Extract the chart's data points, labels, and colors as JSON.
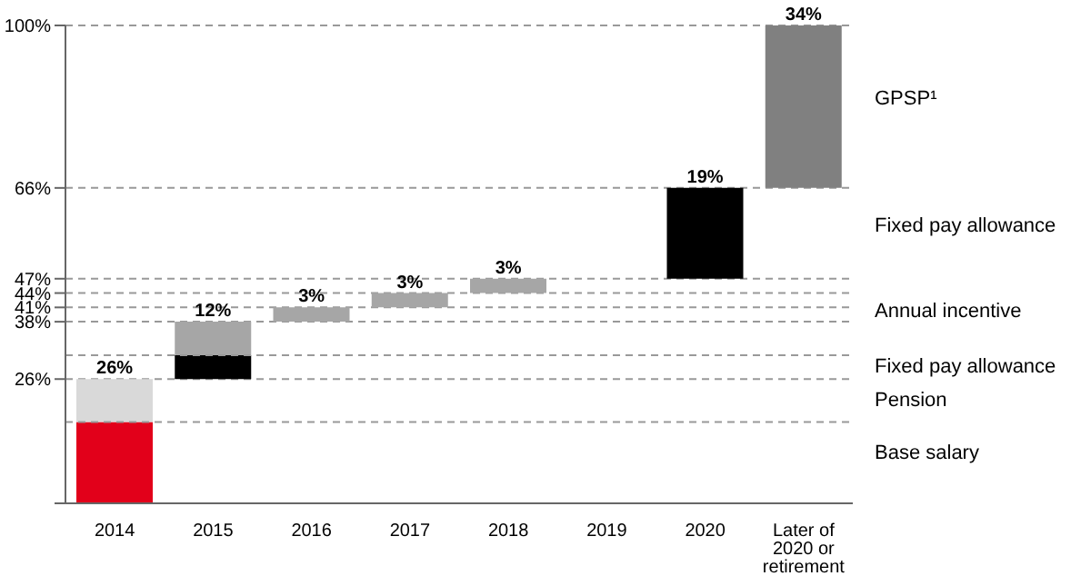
{
  "chart_data": {
    "type": "bar",
    "categories": [
      "2014",
      "2015",
      "2016",
      "2017",
      "2018",
      "2019",
      "2020",
      "Later of 2020 or retirement"
    ],
    "series": [
      {
        "color": "#e2001a",
        "base": [
          0,
          null,
          null,
          null,
          null,
          null,
          null,
          null
        ],
        "values": [
          17,
          null,
          null,
          null,
          null,
          null,
          null,
          null
        ]
      },
      {
        "color": "#d9d9d9",
        "base": [
          17,
          null,
          null,
          null,
          null,
          null,
          null,
          null
        ],
        "values": [
          9,
          null,
          null,
          null,
          null,
          null,
          null,
          null
        ]
      },
      {
        "color": "#000000",
        "base": [
          null,
          26,
          null,
          null,
          null,
          null,
          47,
          null
        ],
        "values": [
          null,
          5,
          null,
          null,
          null,
          null,
          19,
          null
        ]
      },
      {
        "color": "#a6a6a6",
        "base": [
          null,
          31,
          38,
          41,
          44,
          null,
          null,
          null
        ],
        "values": [
          null,
          7,
          3,
          3,
          3,
          null,
          null,
          null
        ]
      },
      {
        "color": "#808080",
        "base": [
          null,
          null,
          null,
          null,
          null,
          null,
          null,
          66
        ],
        "values": [
          null,
          null,
          null,
          null,
          null,
          null,
          null,
          34
        ]
      }
    ],
    "totals": [
      "26%",
      "12%",
      "3%",
      "3%",
      "3%",
      null,
      "19%",
      "34%"
    ],
    "ylim": [
      0,
      100
    ],
    "yticks": [
      {
        "value": 0,
        "label": null
      },
      {
        "value": 26,
        "label": "26%"
      },
      {
        "value": 38,
        "label": "38%"
      },
      {
        "value": 41,
        "label": "41%"
      },
      {
        "value": 44,
        "label": "44%"
      },
      {
        "value": 47,
        "label": "47%"
      },
      {
        "value": 66,
        "label": "66%"
      },
      {
        "value": 100,
        "label": "100%"
      }
    ],
    "grid": "y",
    "ref_lines": [
      {
        "axis": "y",
        "value": 17,
        "line_style": "dashed"
      },
      {
        "axis": "y",
        "value": 31,
        "line_style": "dashed"
      }
    ],
    "annotations": [
      "GPSP¹",
      "Fixed pay allowance",
      "Annual incentive",
      "Fixed pay allowance",
      "Pension",
      "Base salary"
    ]
  }
}
